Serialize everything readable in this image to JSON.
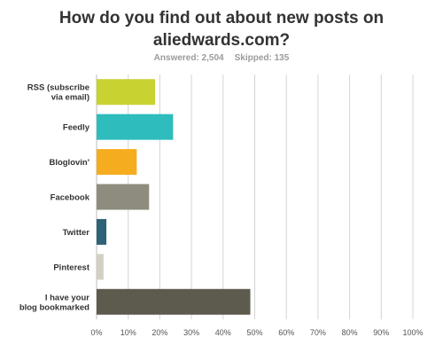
{
  "header": {
    "title_line1": "How do you find out about new posts on",
    "title_line2": "aliedwards.com?",
    "answered": "Answered: 2,504",
    "skipped": "Skipped: 135"
  },
  "colors": {
    "grid": "#d4d4d4",
    "axis": "#bdbdbd",
    "label": "#333333",
    "tick": "#555555"
  },
  "chart_data": {
    "type": "bar",
    "orientation": "horizontal",
    "title": "How do you find out about new posts on aliedwards.com?",
    "xlabel": "",
    "ylabel": "",
    "xlim": [
      0,
      100
    ],
    "grid": true,
    "categories": [
      "RSS (subscribe via email)",
      "Feedly",
      "Bloglovin'",
      "Facebook",
      "Twitter",
      "Pinterest",
      "I have your blog bookmarked"
    ],
    "category_lines": [
      [
        "RSS (subscribe",
        "via email)"
      ],
      [
        "Feedly"
      ],
      [
        "Bloglovin'"
      ],
      [
        "Facebook"
      ],
      [
        "Twitter"
      ],
      [
        "Pinterest"
      ],
      [
        "I have your",
        "blog bookmarked"
      ]
    ],
    "values": [
      18.5,
      24.2,
      12.7,
      16.6,
      3.1,
      2.2,
      48.6
    ],
    "colors": [
      "#c8d230",
      "#2fbcbc",
      "#f5ad1f",
      "#8e8c7e",
      "#2e6277",
      "#d2d0c3",
      "#5d5b4e"
    ],
    "ticks": [
      0,
      10,
      20,
      30,
      40,
      50,
      60,
      70,
      80,
      90,
      100
    ],
    "tick_labels": [
      "0%",
      "10%",
      "20%",
      "30%",
      "40%",
      "50%",
      "60%",
      "70%",
      "80%",
      "90%",
      "100%"
    ]
  }
}
